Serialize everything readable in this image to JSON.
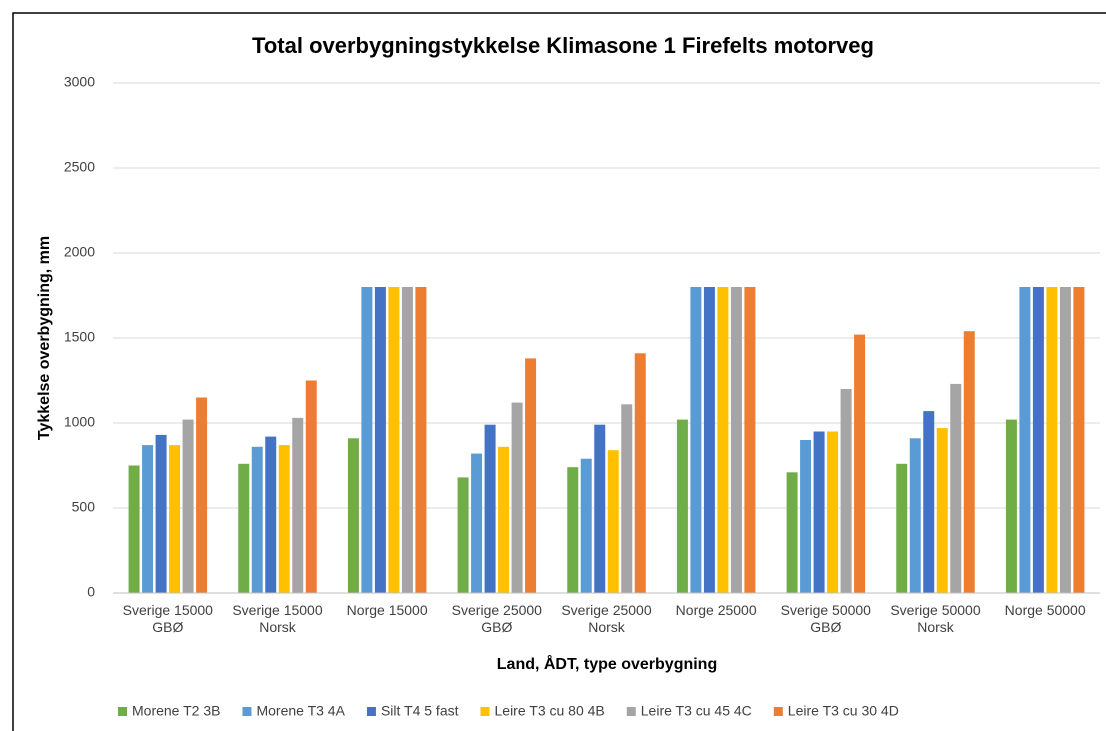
{
  "chart_data": {
    "type": "bar",
    "title": "Total overbygningstykkelse Klimasone 1 Firefelts motorveg",
    "x_label": "Land, ÅDT, type overbygning",
    "y_label": "Tykkelse overbygning, mm",
    "categories": [
      "Sverige 15000 GBØ",
      "Sverige 15000 Norsk",
      "Norge 15000",
      "Sverige 25000 GBØ",
      "Sverige 25000 Norsk",
      "Norge 25000",
      "Sverige 50000 GBØ",
      "Sverige 50000 Norsk",
      "Norge 50000"
    ],
    "series": [
      {
        "name": "Morene T2 3B",
        "color": "#70ad47",
        "values": [
          750,
          760,
          910,
          680,
          740,
          1020,
          710,
          760,
          1020
        ]
      },
      {
        "name": "Morene T3 4A",
        "color": "#5b9bd5",
        "values": [
          870,
          860,
          1800,
          820,
          790,
          1800,
          900,
          910,
          1800
        ]
      },
      {
        "name": "Silt T4 5 fast",
        "color": "#4472c4",
        "values": [
          930,
          920,
          1800,
          990,
          990,
          1800,
          950,
          1070,
          1800
        ]
      },
      {
        "name": "Leire T3 cu 80 4B",
        "color": "#ffc000",
        "values": [
          870,
          870,
          1800,
          860,
          840,
          1800,
          950,
          970,
          1800
        ]
      },
      {
        "name": "Leire T3 cu 45 4C",
        "color": "#a5a5a5",
        "values": [
          1020,
          1030,
          1800,
          1120,
          1110,
          1800,
          1200,
          1230,
          1800
        ]
      },
      {
        "name": "Leire T3 cu 30 4D",
        "color": "#ed7d31",
        "values": [
          1150,
          1250,
          1800,
          1380,
          1410,
          1800,
          1520,
          1540,
          1800
        ]
      }
    ],
    "ylim": [
      0,
      3000
    ],
    "yticks": [
      0,
      500,
      1000,
      1500,
      2000,
      2500,
      3000
    ],
    "grid": true,
    "legend": "bottom"
  }
}
